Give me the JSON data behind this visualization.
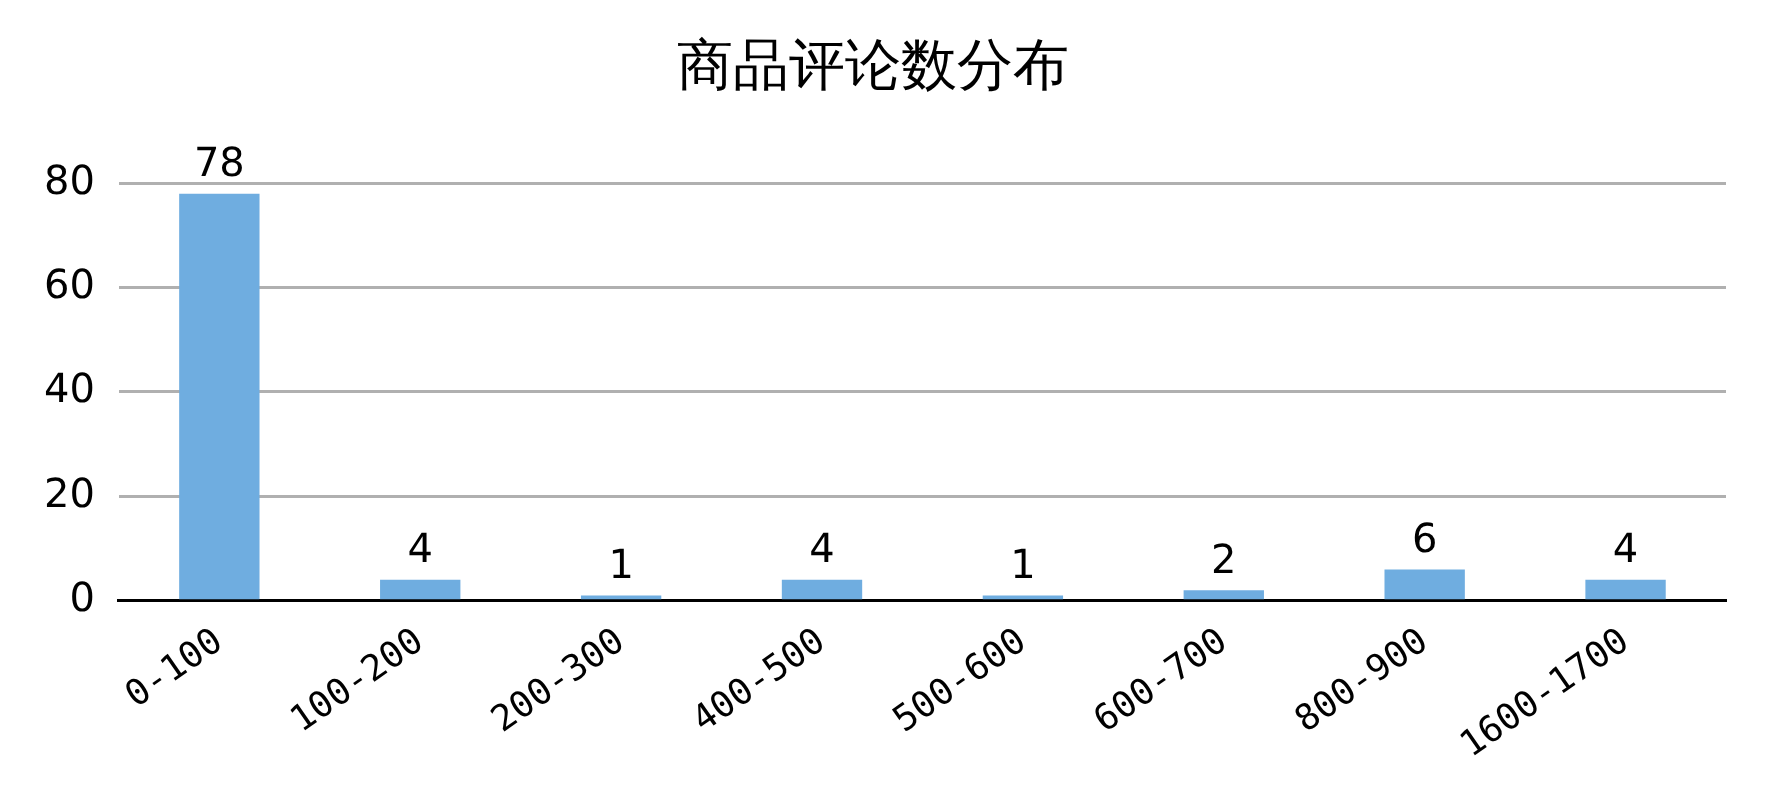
{
  "chart_data": {
    "type": "bar",
    "title": "商品评论数分布",
    "categories": [
      "0-100",
      "100-200",
      "200-300",
      "400-500",
      "500-600",
      "600-700",
      "800-900",
      "1600-1700"
    ],
    "values": [
      78,
      4,
      1,
      4,
      1,
      2,
      6,
      4
    ],
    "color": "#6fade0",
    "ylim": [
      0,
      80
    ],
    "yticks": [
      0,
      20,
      40,
      60,
      80
    ],
    "grid": "y",
    "data_labels": true
  }
}
